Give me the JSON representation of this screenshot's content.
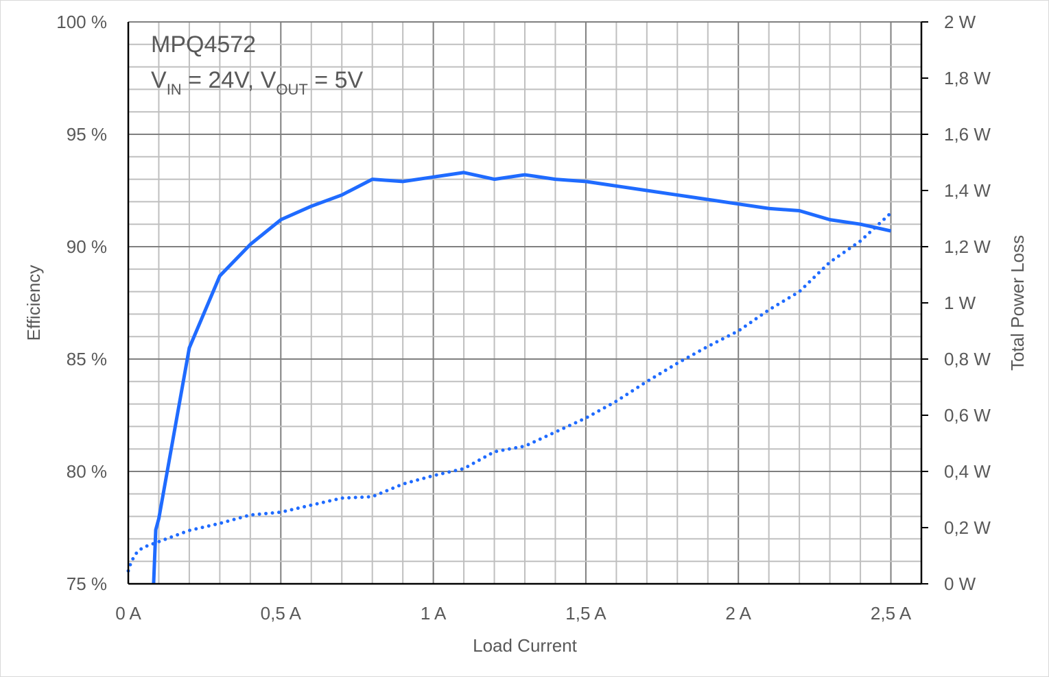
{
  "chart_data": {
    "type": "line",
    "annotation": {
      "line1": "MPQ4572",
      "line2": {
        "v1": "V",
        "v1_sub": "IN",
        "eq1": " = 24V, V",
        "v2_sub": "OUT",
        "eq2": " = 5V"
      }
    },
    "xlabel": "Load Current",
    "ylabel": "Efficiency",
    "y2label": "Total Power Loss",
    "xlim": [
      0,
      2.6
    ],
    "ylim": [
      75,
      100
    ],
    "y2lim": [
      0,
      2
    ],
    "grid": true,
    "x_ticks": [
      0,
      0.5,
      1,
      1.5,
      2,
      2.5
    ],
    "x_tick_labels": [
      "0 A",
      "0,5 A",
      "1 A",
      "1,5 A",
      "2 A",
      "2,5 A"
    ],
    "y_ticks": [
      100,
      95,
      90,
      85,
      80,
      75
    ],
    "y_tick_labels": [
      "100 %",
      "95 %",
      "90 %",
      "85 %",
      "80 %",
      "75 %"
    ],
    "y2_ticks": [
      2,
      1.8,
      1.6,
      1.4,
      1.2,
      1,
      0.8,
      0.6,
      0.4,
      0.2,
      0
    ],
    "y2_tick_labels": [
      "2 W",
      "1,8 W",
      "1,6 W",
      "1,4 W",
      "1,2 W",
      "1 W",
      "0,8 W",
      "0,6 W",
      "0,4 W",
      "0,2 W",
      "0 W"
    ],
    "series": [
      {
        "axis": "left",
        "style": "solid",
        "color": "#1f6bff",
        "x": [
          0.083,
          0.09,
          0.1,
          0.2,
          0.3,
          0.4,
          0.5,
          0.6,
          0.7,
          0.8,
          0.9,
          1.0,
          1.1,
          1.2,
          1.3,
          1.4,
          1.5,
          1.6,
          1.7,
          1.8,
          1.9,
          2.0,
          2.1,
          2.2,
          2.3,
          2.4,
          2.5
        ],
        "y": [
          75,
          77.4,
          77.9,
          85.5,
          88.7,
          90.1,
          91.2,
          91.8,
          92.3,
          93.0,
          92.9,
          93.1,
          93.3,
          93.0,
          93.2,
          93.0,
          92.9,
          92.7,
          92.5,
          92.3,
          92.1,
          91.9,
          91.7,
          91.6,
          91.2,
          91.0,
          90.7
        ]
      },
      {
        "axis": "right",
        "style": "dotted",
        "color": "#1f6bff",
        "x": [
          0,
          0.01,
          0.03,
          0.05,
          0.1,
          0.2,
          0.3,
          0.4,
          0.5,
          0.6,
          0.7,
          0.8,
          0.9,
          1.0,
          1.1,
          1.2,
          1.3,
          1.4,
          1.5,
          1.6,
          1.7,
          1.8,
          1.9,
          2.0,
          2.1,
          2.2,
          2.3,
          2.4,
          2.5
        ],
        "y": [
          0.046,
          0.08,
          0.115,
          0.13,
          0.15,
          0.19,
          0.215,
          0.245,
          0.255,
          0.28,
          0.305,
          0.31,
          0.355,
          0.385,
          0.41,
          0.47,
          0.49,
          0.54,
          0.59,
          0.65,
          0.72,
          0.785,
          0.845,
          0.9,
          0.975,
          1.04,
          1.145,
          1.22,
          1.32
        ]
      }
    ]
  }
}
